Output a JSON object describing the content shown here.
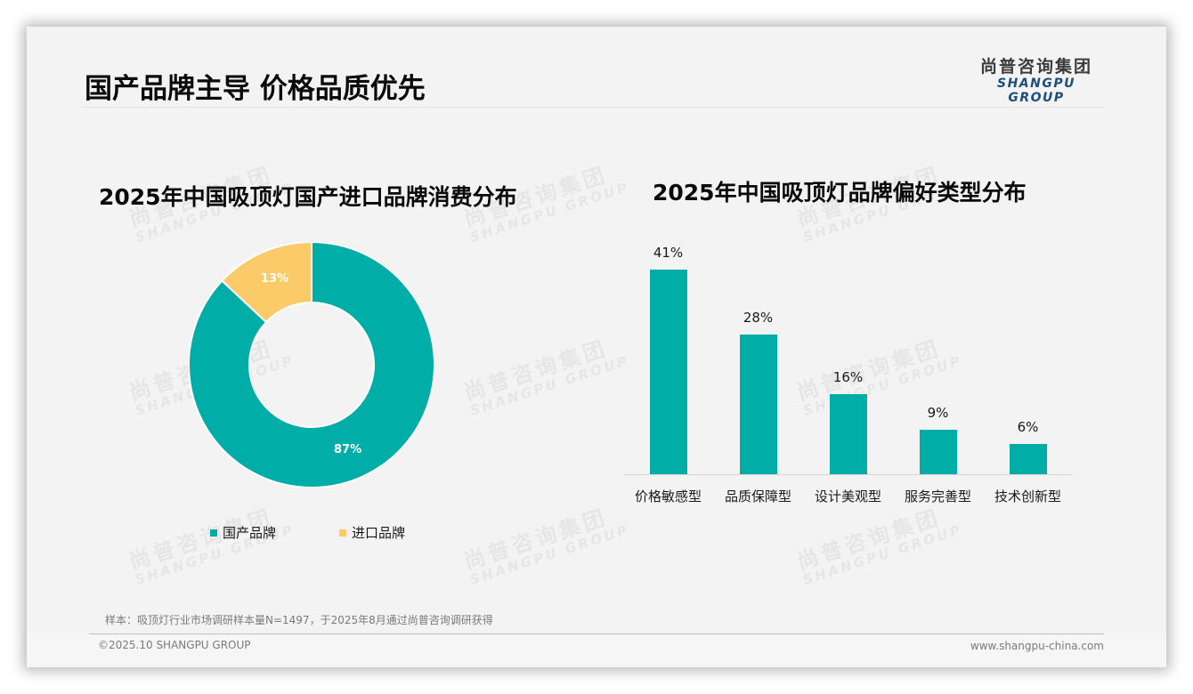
{
  "header": {
    "title": "国产品牌主导 价格品质优先",
    "logo_cn": "尚普咨询集团",
    "logo_en": "SHANGPU GROUP"
  },
  "watermark": {
    "cn": "尚普咨询集团",
    "en": "SHANGPU GROUP"
  },
  "colors": {
    "teal": "#00ADA7",
    "yellow": "#FBCB69",
    "title": "#0a0a0a",
    "logo_blue": "#1f4e79",
    "background": "#f3f3f3"
  },
  "left_chart": {
    "title": "2025年中国吸顶灯国产进口品牌消费分布",
    "slices": [
      {
        "label": "国产品牌",
        "value": 87,
        "display": "87%",
        "color": "#00ADA7"
      },
      {
        "label": "进口品牌",
        "value": 13,
        "display": "13%",
        "color": "#FBCB69"
      }
    ]
  },
  "right_chart": {
    "title": "2025年中国吸顶灯品牌偏好类型分布",
    "bars": [
      {
        "category": "价格敏感型",
        "value": 41,
        "display": "41%"
      },
      {
        "category": "品质保障型",
        "value": 28,
        "display": "28%"
      },
      {
        "category": "设计美观型",
        "value": 16,
        "display": "16%"
      },
      {
        "category": "服务完善型",
        "value": 9,
        "display": "9%"
      },
      {
        "category": "技术创新型",
        "value": 6,
        "display": "6%"
      }
    ]
  },
  "footer": {
    "note": "样本：吸顶灯行业市场调研样本量N=1497，于2025年8月通过尚普咨询调研获得",
    "copyright": "©2025.10 SHANGPU GROUP",
    "website": "www.shangpu-china.com"
  },
  "chart_data": [
    {
      "type": "pie",
      "title": "2025年中国吸顶灯国产进口品牌消费分布",
      "categories": [
        "国产品牌",
        "进口品牌"
      ],
      "values": [
        87,
        13
      ],
      "unit": "%",
      "style": "donut",
      "colors": [
        "#00ADA7",
        "#FBCB69"
      ],
      "legend_position": "bottom"
    },
    {
      "type": "bar",
      "title": "2025年中国吸顶灯品牌偏好类型分布",
      "categories": [
        "价格敏感型",
        "品质保障型",
        "设计美观型",
        "服务完善型",
        "技术创新型"
      ],
      "values": [
        41,
        28,
        16,
        9,
        6
      ],
      "unit": "%",
      "xlabel": "",
      "ylabel": "",
      "ylim": [
        0,
        45
      ],
      "grid": false,
      "data_labels": true,
      "color": "#00ADA7"
    }
  ]
}
